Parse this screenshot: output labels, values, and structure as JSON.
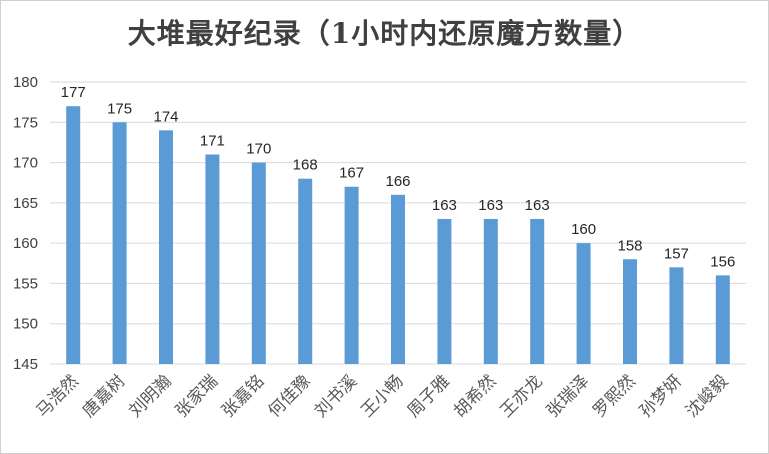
{
  "chart_data": {
    "type": "bar",
    "title": "大堆最好纪录（1小时内还原魔方数量）",
    "categories": [
      "马浩然",
      "唐嘉树",
      "刘明瀚",
      "张家瑞",
      "张嘉铭",
      "何佳豫",
      "刘书溪",
      "王小畅",
      "周子雅",
      "胡希然",
      "王亦龙",
      "张瑞泽",
      "罗熙然",
      "孙梦妍",
      "沈峻毅"
    ],
    "values": [
      177,
      175,
      174,
      171,
      170,
      168,
      167,
      166,
      163,
      163,
      163,
      160,
      158,
      157,
      156
    ],
    "ylim": [
      145,
      180
    ],
    "yticks": [
      145,
      150,
      155,
      160,
      165,
      170,
      175,
      180
    ],
    "xlabel": "",
    "ylabel": "",
    "grid": true,
    "legend": "none",
    "bar_color": "#5B9BD5",
    "grid_color": "#d9d9d9"
  }
}
